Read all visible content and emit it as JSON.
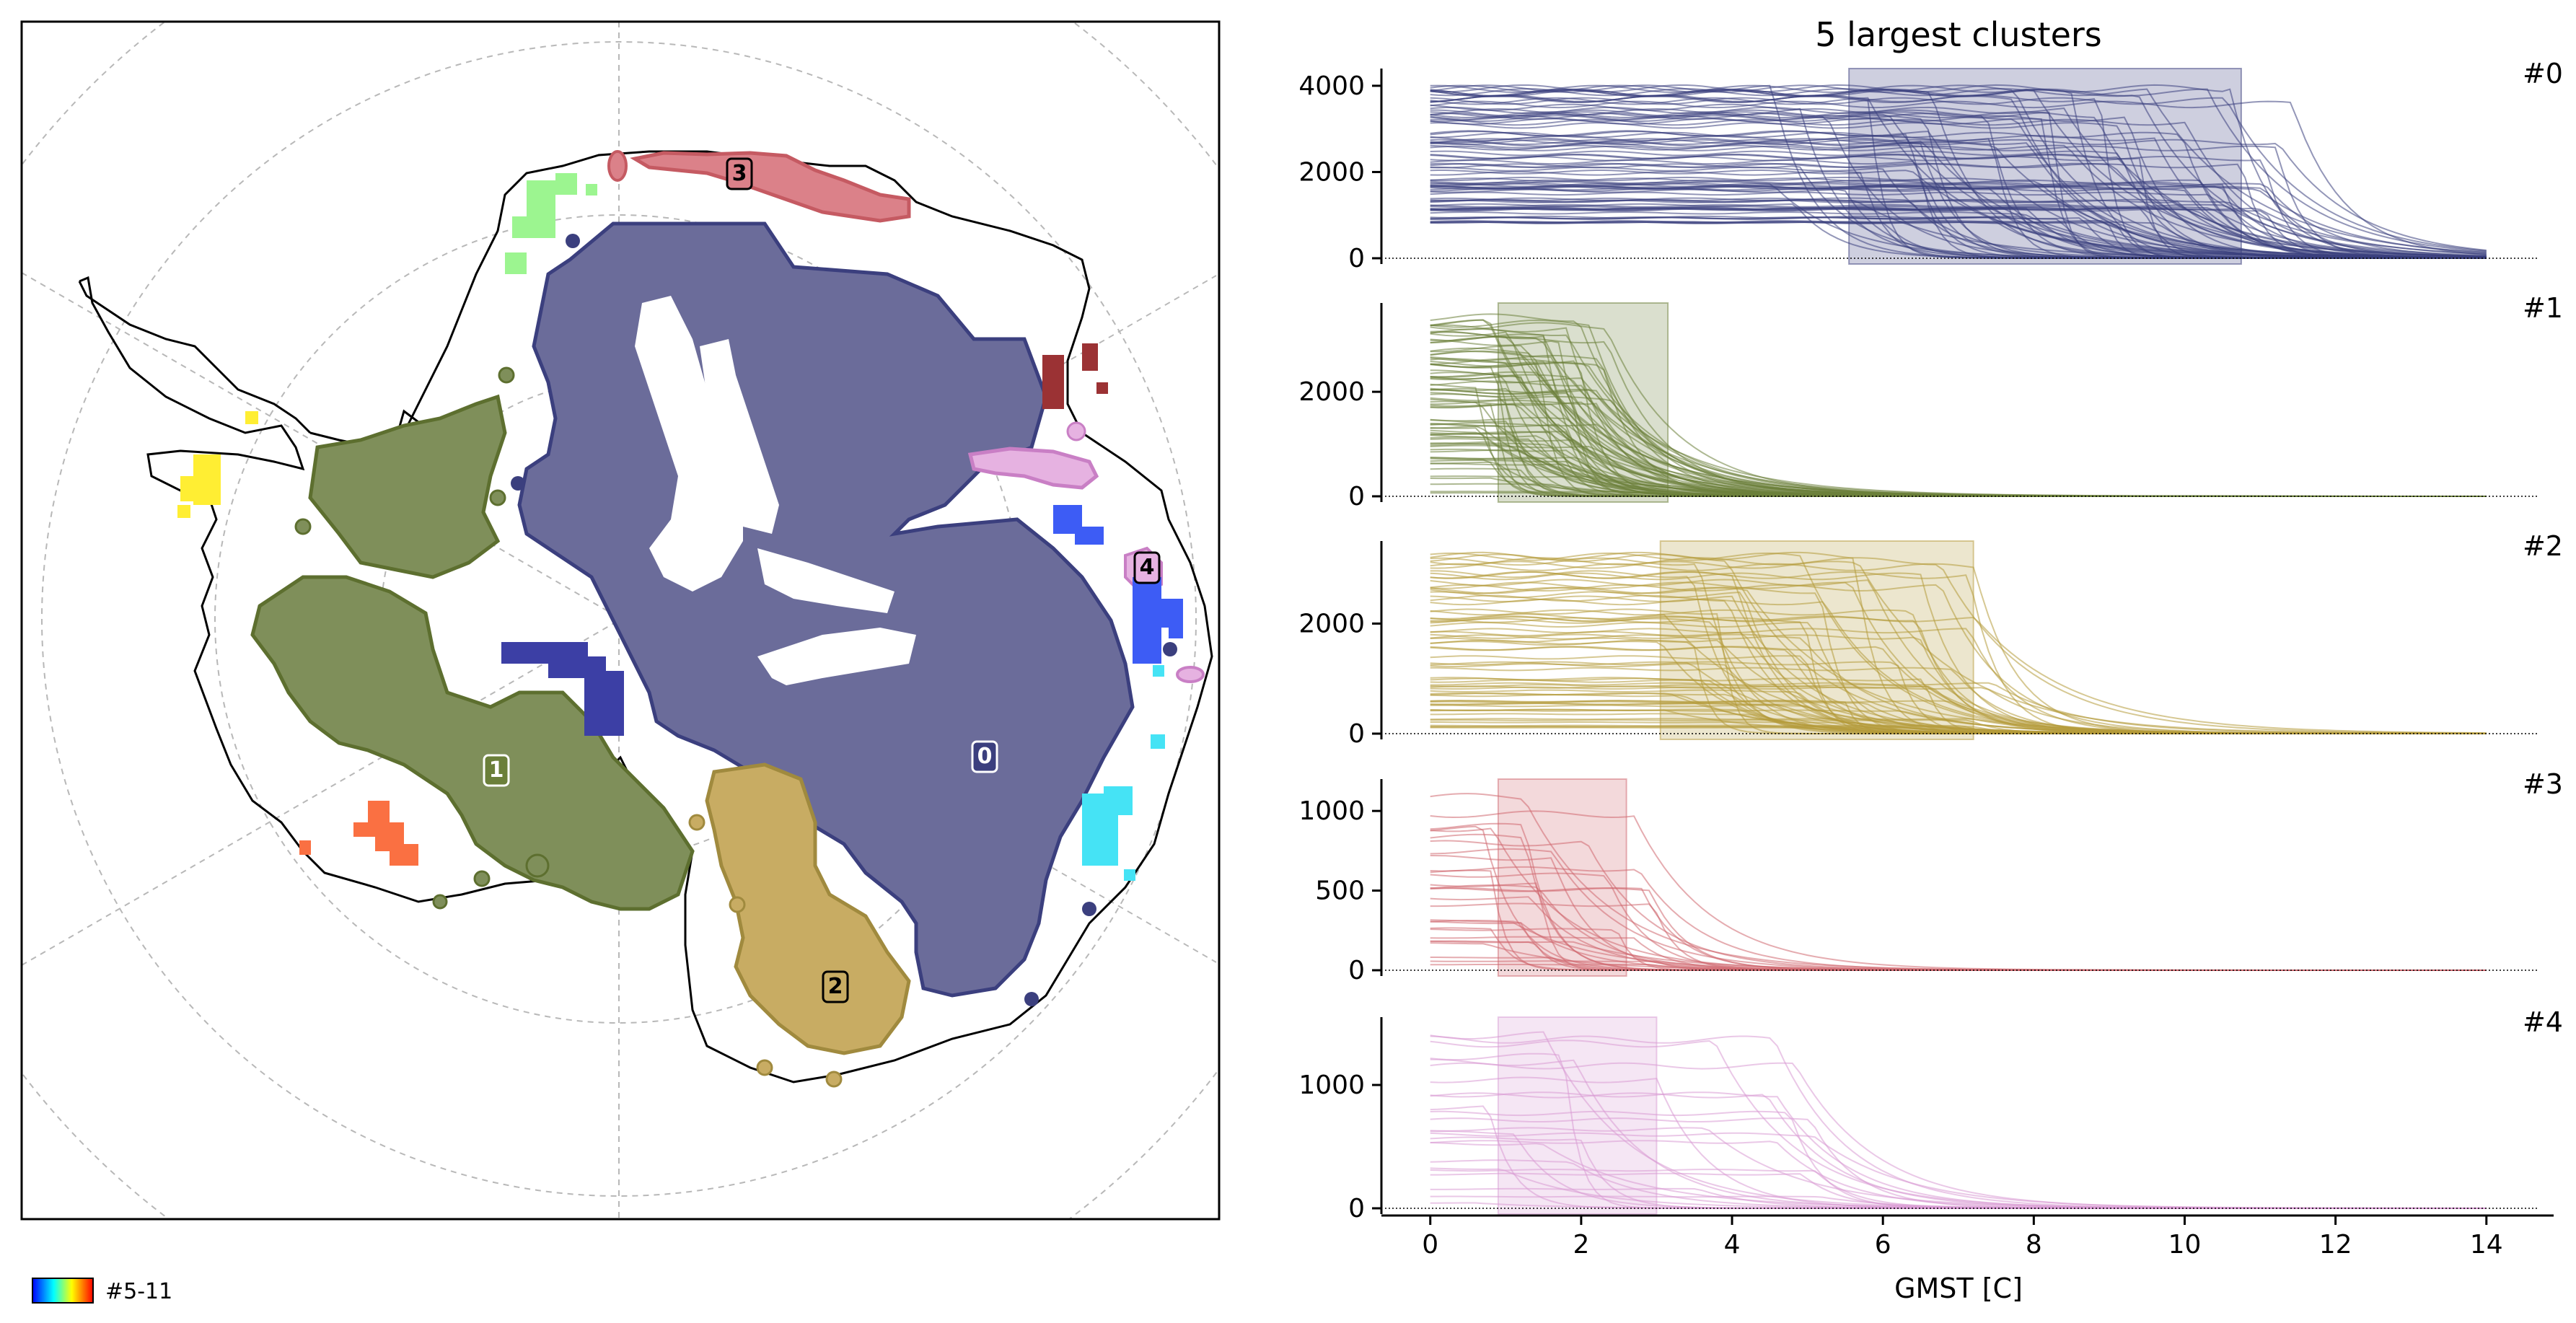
{
  "chart_data": [
    {
      "type": "map",
      "description_labels": [
        "0",
        "1",
        "2",
        "3",
        "4"
      ],
      "cluster_labels": [
        {
          "id": "0",
          "color": "#3b3f7e"
        },
        {
          "id": "1",
          "color": "#6b7f3a"
        },
        {
          "id": "2",
          "color": "#b59a3b"
        },
        {
          "id": "3",
          "color": "#d0686f"
        },
        {
          "id": "4",
          "color": "#d89bd3"
        }
      ],
      "legend_text": "#5-11",
      "legend_colormap": [
        "#0000ff",
        "#00ffff",
        "#ffff00",
        "#ff0000"
      ]
    },
    {
      "type": "line",
      "title": "5 largest clusters",
      "xlabel": "GMST [C]",
      "xlim": [
        -0.6,
        14.7
      ],
      "xticks": [
        0,
        2,
        4,
        6,
        8,
        10,
        12,
        14
      ],
      "panels": [
        {
          "label": "#0",
          "color": "#3b3f7e",
          "ylim": [
            0,
            4400
          ],
          "yticks": [
            0,
            2000,
            4000
          ],
          "span": [
            5.55,
            10.75
          ],
          "ystart": [
            800,
            4000
          ],
          "drop_x": [
            4.5,
            11.5
          ],
          "n_lines": 90
        },
        {
          "label": "#1",
          "color": "#6b7f3a",
          "ylim": [
            0,
            3700
          ],
          "yticks": [
            0,
            2000
          ],
          "span": [
            0.9,
            3.15
          ],
          "ystart": [
            50,
            3450
          ],
          "drop_x": [
            0.6,
            2.4
          ],
          "n_lines": 80
        },
        {
          "label": "#2",
          "color": "#b59a3b",
          "ylim": [
            0,
            3500
          ],
          "yticks": [
            0,
            2000
          ],
          "span": [
            3.05,
            7.2
          ],
          "ystart": [
            100,
            3300
          ],
          "drop_x": [
            3.0,
            7.5
          ],
          "n_lines": 70
        },
        {
          "label": "#3",
          "color": "#d0686f",
          "ylim": [
            0,
            1200
          ],
          "yticks": [
            0,
            500,
            1000
          ],
          "span": [
            0.9,
            2.6
          ],
          "ystart": [
            30,
            1100
          ],
          "drop_x": [
            0.5,
            3.0
          ],
          "n_lines": 30
        },
        {
          "label": "#4",
          "color": "#d89bd3",
          "ylim": [
            0,
            1550
          ],
          "yticks": [
            0,
            1000
          ],
          "span": [
            0.9,
            3.0
          ],
          "ystart": [
            20,
            1450
          ],
          "drop_x": [
            0.5,
            5.5
          ],
          "n_lines": 25
        }
      ]
    }
  ]
}
